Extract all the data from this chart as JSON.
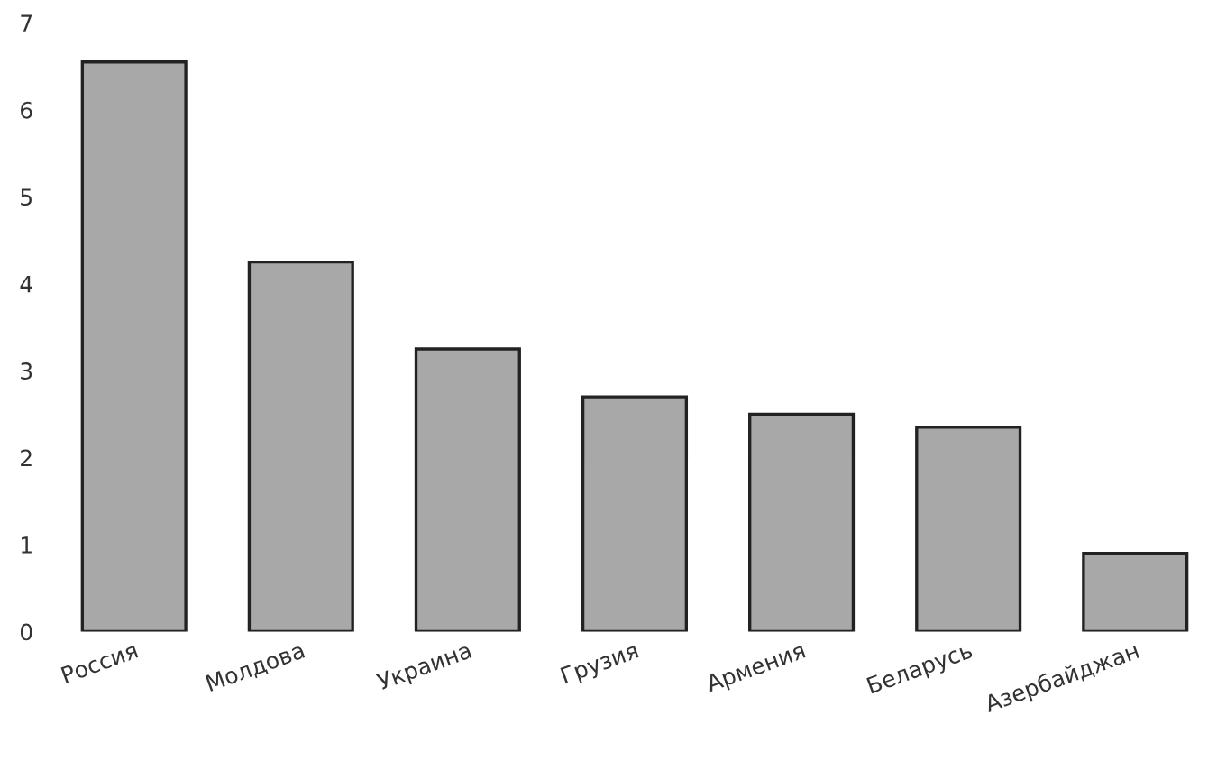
{
  "chart_data": {
    "type": "bar",
    "categories": [
      "Россия",
      "Молдова",
      "Украина",
      "Грузия",
      "Армения",
      "Беларусь",
      "Азербайджан"
    ],
    "values": [
      6.55,
      4.25,
      3.25,
      2.7,
      2.5,
      2.35,
      0.9
    ],
    "color": "#a8a8a8",
    "ylim": [
      0,
      7
    ],
    "yticks": [
      0,
      1,
      2,
      3,
      4,
      5,
      6,
      7
    ],
    "grid": false
  }
}
